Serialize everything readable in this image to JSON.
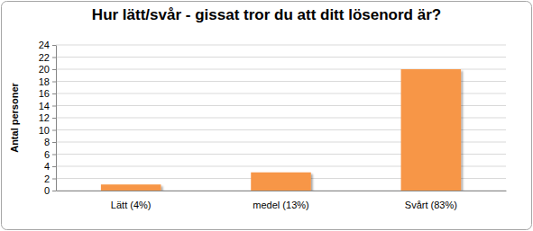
{
  "chart_data": {
    "type": "bar",
    "title": "Hur lätt/svår - gissat tror du att ditt lösenord är?",
    "y_label": "Antal personer",
    "categories": [
      "Lätt (4%)",
      "medel (13%)",
      "Svårt (83%)"
    ],
    "values": [
      1,
      3,
      20
    ],
    "color": "#f79646",
    "ylim": [
      0,
      24
    ],
    "yticks": [
      0,
      2,
      4,
      6,
      8,
      10,
      12,
      14,
      16,
      18,
      20,
      22,
      24
    ],
    "grid": true
  }
}
